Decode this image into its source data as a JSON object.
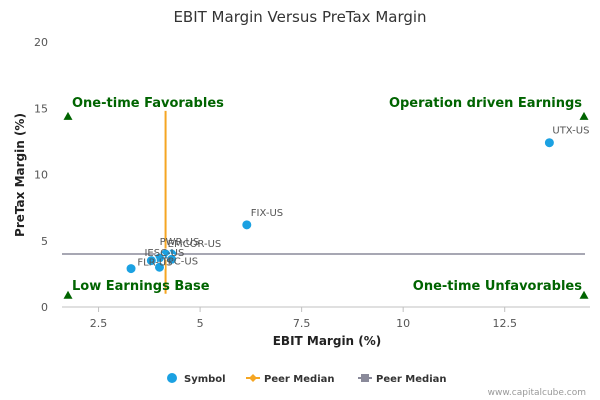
{
  "chart_data": {
    "type": "scatter",
    "title": "EBIT Margin Versus PreTax Margin",
    "xlabel": "EBIT Margin (%)",
    "ylabel": "PreTax Margin (%)",
    "xlim": [
      1.6,
      14.6
    ],
    "ylim": [
      0,
      20
    ],
    "x_ticks": [
      2.5,
      5,
      7.5,
      10,
      12.5
    ],
    "x_tick_labels": [
      "2.5",
      "5",
      "7.5",
      "10",
      "12.5"
    ],
    "y_ticks": [
      0,
      5,
      10,
      15,
      20
    ],
    "y_tick_labels": [
      "0",
      "5",
      "10",
      "15",
      "20"
    ],
    "grid": false,
    "points": [
      {
        "label": "UTX-US",
        "x": 13.6,
        "y": 12.4
      },
      {
        "label": "FIX-US",
        "x": 6.15,
        "y": 6.2
      },
      {
        "label": "EMCOR-US",
        "x": 4.3,
        "y": 4.0
      },
      {
        "label": "PWR-US",
        "x": 4.15,
        "y": 4.0
      },
      {
        "label": "IESC-US",
        "x": 4.0,
        "y": 3.7
      },
      {
        "label": "TPC-US",
        "x": 4.3,
        "y": 3.6
      },
      {
        "label": "FLR-US",
        "x": 3.8,
        "y": 3.5
      },
      {
        "label": "",
        "x": 4.0,
        "y": 3.0
      },
      {
        "label": "",
        "x": 3.3,
        "y": 2.9
      }
    ],
    "point_color": "#1ba1e2",
    "peer_median_x": 4.15,
    "peer_median_y": 4.0,
    "peer_median_x_color": "#f5a623",
    "peer_median_y_color": "#8a8a9a",
    "quadrants": {
      "top_left": "One-time Favorables",
      "top_right": "Operation driven Earnings",
      "bottom_left": "Low Earnings Base",
      "bottom_right": "One-time Unfavorables",
      "color": "#006400"
    },
    "legend": [
      {
        "label": "Symbol",
        "marker": "circle",
        "color": "#1ba1e2"
      },
      {
        "label": "Peer Median",
        "marker": "diamond-line",
        "color": "#f5a623"
      },
      {
        "label": "Peer Median",
        "marker": "square-line",
        "color": "#8a8a9a"
      }
    ],
    "legend_position": "bottom"
  },
  "credit": "www.capitalcube.com"
}
